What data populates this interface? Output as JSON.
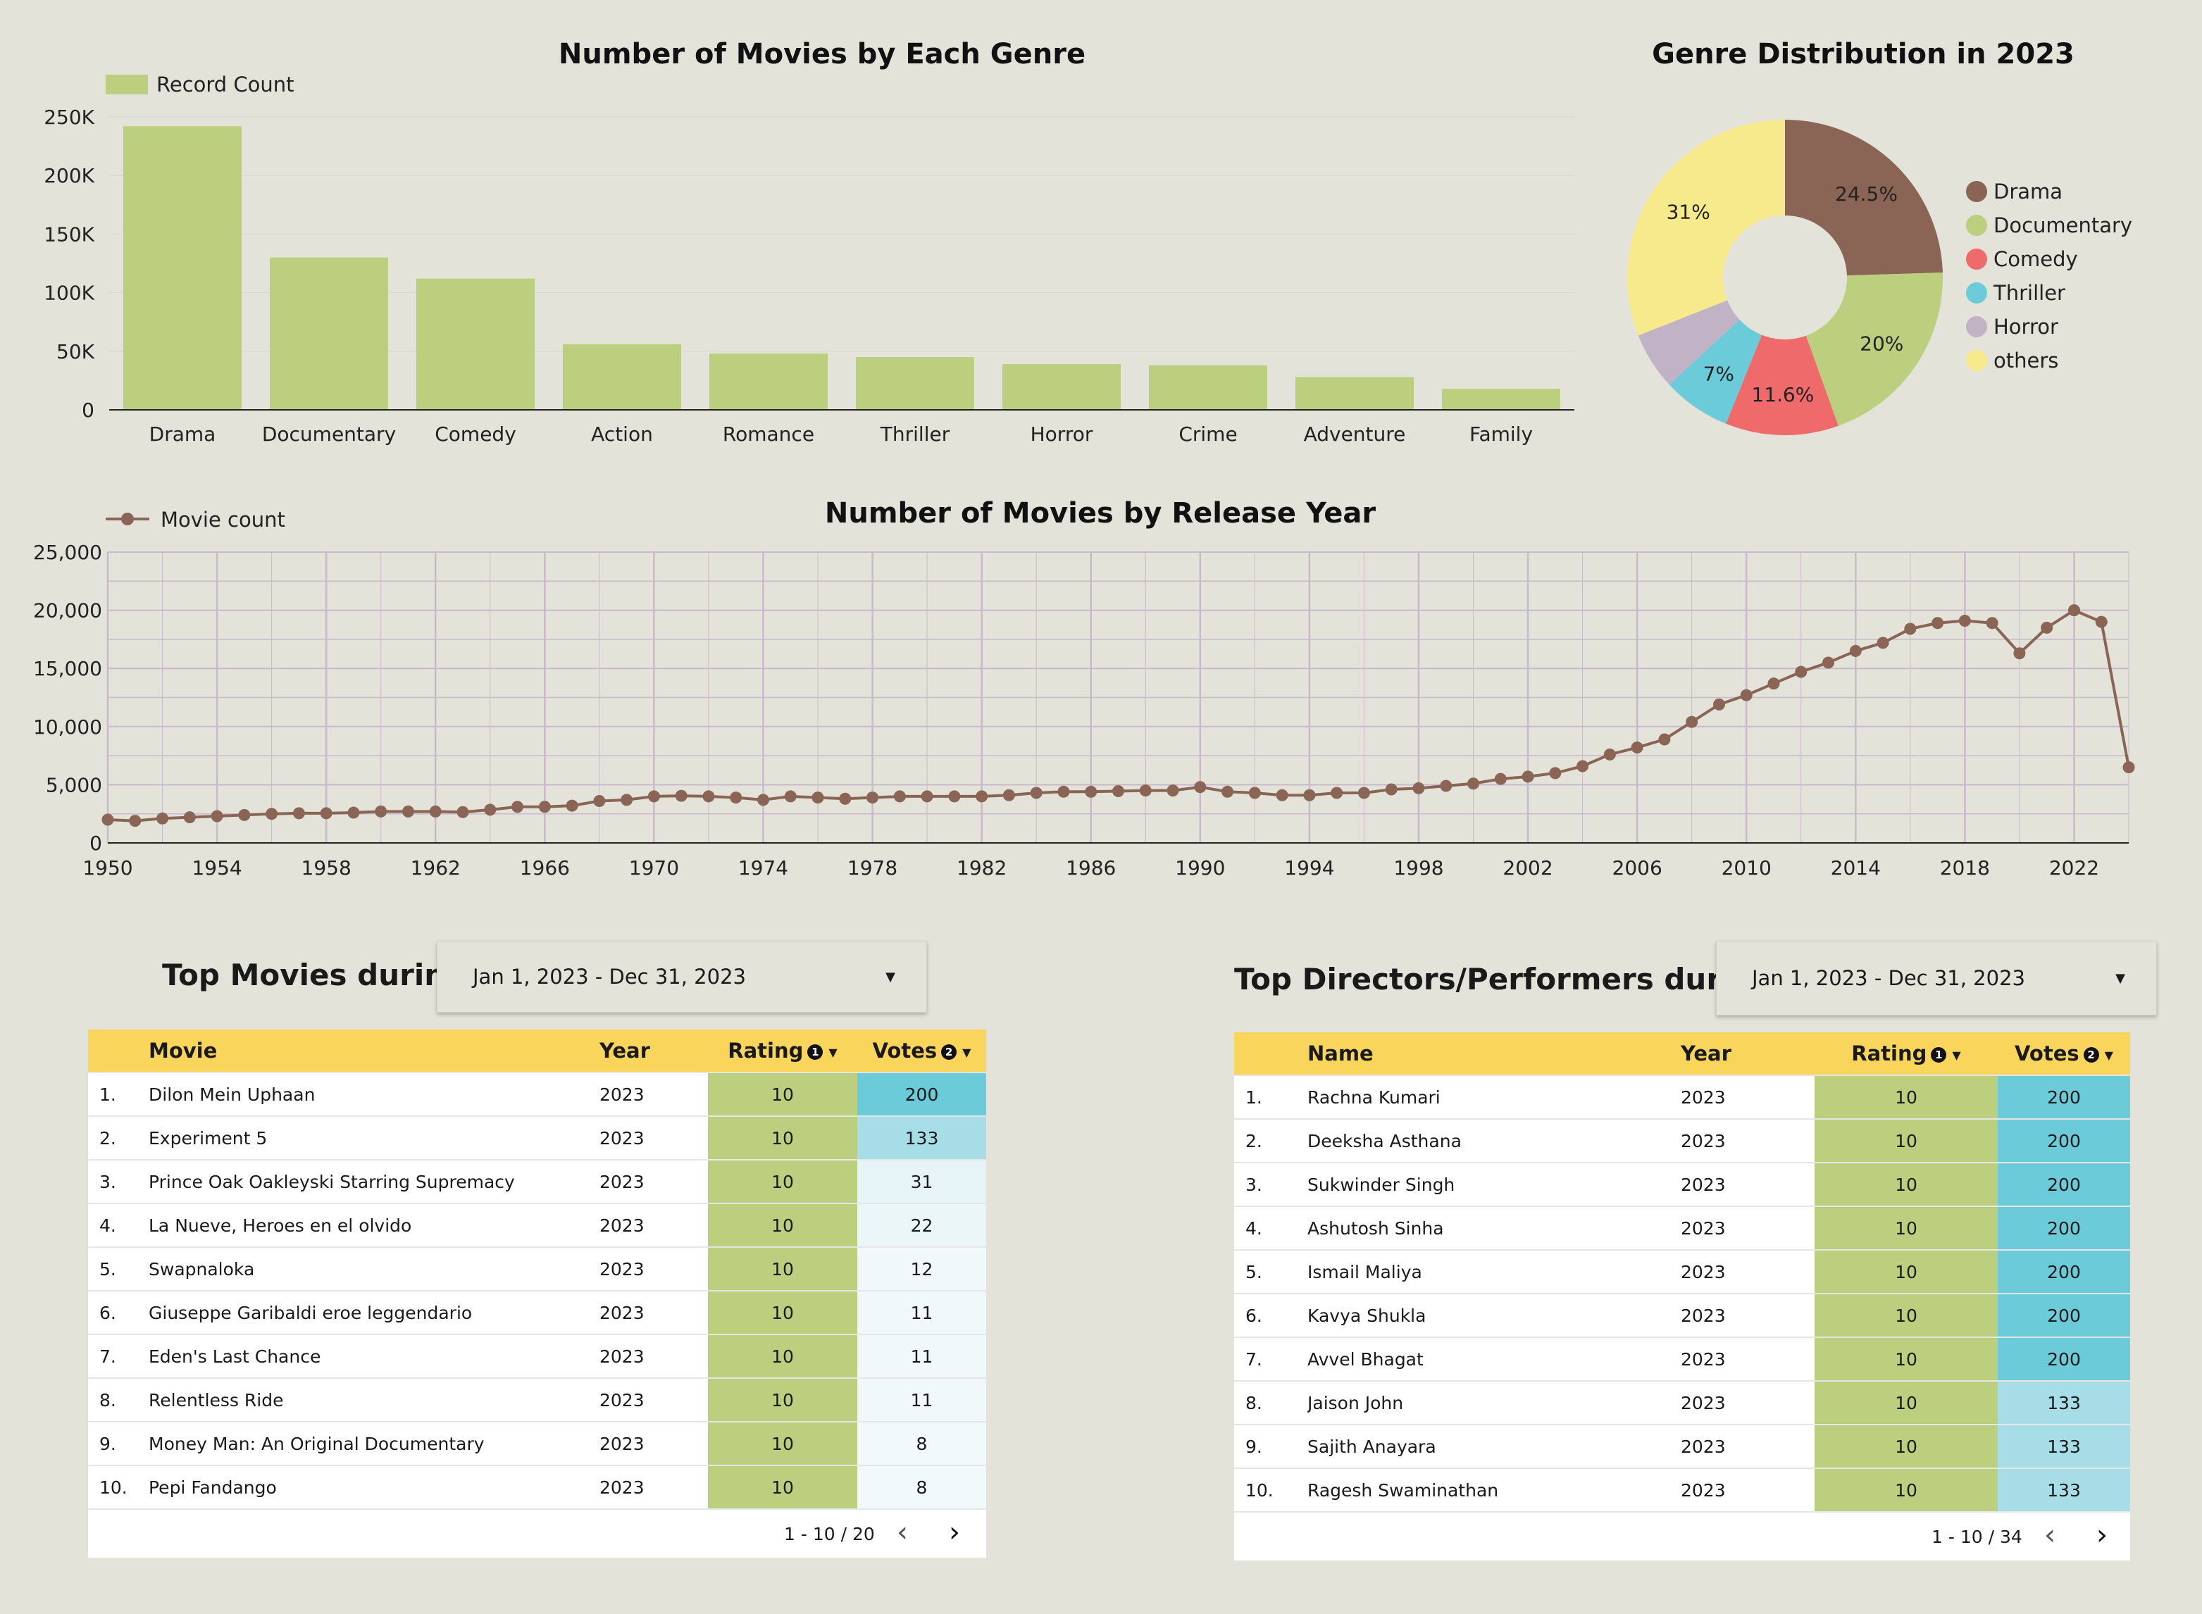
{
  "charts": {
    "genre_bar": {
      "type": "bar",
      "title": "Number of Movies by Each Genre",
      "legend": "Record Count",
      "categories": [
        "Drama",
        "Documentary",
        "Comedy",
        "Action",
        "Romance",
        "Thriller",
        "Horror",
        "Crime",
        "Adventure",
        "Family"
      ],
      "values": [
        242000,
        130000,
        112000,
        56000,
        48000,
        45000,
        39000,
        38000,
        28000,
        18000
      ],
      "ylim": [
        0,
        250000
      ],
      "yticks": [
        0,
        50000,
        100000,
        150000,
        200000,
        250000
      ],
      "ytick_labels": [
        "0",
        "50K",
        "100K",
        "150K",
        "200K",
        "250K"
      ],
      "color": "#bccf7f"
    },
    "genre_pie": {
      "type": "pie",
      "title": "Genre Distribution in 2023",
      "slices": [
        {
          "label": "Drama",
          "value": 24.5,
          "text": "24.5%",
          "color": "#8a6454"
        },
        {
          "label": "Documentary",
          "value": 20,
          "text": "20%",
          "color": "#bccf7f"
        },
        {
          "label": "Comedy",
          "value": 11.6,
          "text": "11.6%",
          "color": "#ef6b6b"
        },
        {
          "label": "Thriller",
          "value": 7,
          "text": "7%",
          "color": "#6ccbd8"
        },
        {
          "label": "Horror",
          "value": 5.9,
          "text": "",
          "color": "#c2b2c6"
        },
        {
          "label": "others",
          "value": 31,
          "text": "31%",
          "color": "#f6ea8c"
        }
      ]
    },
    "year_line": {
      "type": "line",
      "title": "Number of Movies by Release Year",
      "legend": "Movie count",
      "x": [
        1950,
        1951,
        1952,
        1953,
        1954,
        1955,
        1956,
        1957,
        1958,
        1959,
        1960,
        1961,
        1962,
        1963,
        1964,
        1965,
        1966,
        1967,
        1968,
        1969,
        1970,
        1971,
        1972,
        1973,
        1974,
        1975,
        1976,
        1977,
        1978,
        1979,
        1980,
        1981,
        1982,
        1983,
        1984,
        1985,
        1986,
        1987,
        1988,
        1989,
        1990,
        1991,
        1992,
        1993,
        1994,
        1995,
        1996,
        1997,
        1998,
        1999,
        2000,
        2001,
        2002,
        2003,
        2004,
        2005,
        2006,
        2007,
        2008,
        2009,
        2010,
        2011,
        2012,
        2013,
        2014,
        2015,
        2016,
        2017,
        2018,
        2019,
        2020,
        2021,
        2022,
        2023,
        2024
      ],
      "y": [
        2000,
        1900,
        2100,
        2200,
        2300,
        2400,
        2500,
        2550,
        2550,
        2600,
        2700,
        2700,
        2700,
        2650,
        2850,
        3100,
        3100,
        3200,
        3600,
        3700,
        4000,
        4050,
        4000,
        3900,
        3700,
        4000,
        3900,
        3800,
        3900,
        4000,
        4000,
        4000,
        4000,
        4100,
        4300,
        4400,
        4400,
        4450,
        4500,
        4500,
        4800,
        4400,
        4300,
        4100,
        4100,
        4300,
        4300,
        4600,
        4700,
        4900,
        5100,
        5500,
        5700,
        6000,
        6600,
        7600,
        8200,
        8900,
        10400,
        11900,
        12700,
        13700,
        14700,
        15500,
        16500,
        17200,
        18400,
        18900,
        19100,
        18900,
        16300,
        18500,
        20000,
        19000,
        6500
      ],
      "ylim": [
        0,
        25000
      ],
      "yticks": [
        0,
        5000,
        10000,
        15000,
        20000,
        25000
      ],
      "ytick_labels": [
        "0",
        "5,000",
        "10,000",
        "15,000",
        "20,000",
        "25,000"
      ],
      "xticks": [
        1950,
        1954,
        1958,
        1962,
        1966,
        1970,
        1974,
        1978,
        1982,
        1986,
        1990,
        1994,
        1998,
        2002,
        2006,
        2010,
        2014,
        2018,
        2022
      ],
      "xlim": [
        1950,
        2024
      ],
      "grid": true,
      "color": "#8a6454"
    }
  },
  "top_movies": {
    "heading": "Top Movies during",
    "date_range": "Jan 1, 2023 - Dec 31, 2023",
    "columns": {
      "name": "Movie",
      "year": "Year",
      "rating": "Rating",
      "votes": "Votes",
      "rating_note": "1",
      "votes_note": "2"
    },
    "rows": [
      {
        "idx": "1.",
        "name": "Dilon Mein Uphaan",
        "year": "2023",
        "rating": "10",
        "votes": "200",
        "votes_color": "#6ccbd8"
      },
      {
        "idx": "2.",
        "name": "Experiment 5",
        "year": "2023",
        "rating": "10",
        "votes": "133",
        "votes_color": "#a6dde6"
      },
      {
        "idx": "3.",
        "name": "Prince Oak Oakleyski Starring Supremacy",
        "year": "2023",
        "rating": "10",
        "votes": "31",
        "votes_color": "#e6f4f7"
      },
      {
        "idx": "4.",
        "name": "La Nueve, Heroes en el olvido",
        "year": "2023",
        "rating": "10",
        "votes": "22",
        "votes_color": "#ebf6f8"
      },
      {
        "idx": "5.",
        "name": "Swapnaloka",
        "year": "2023",
        "rating": "10",
        "votes": "12",
        "votes_color": "#f0f8fa"
      },
      {
        "idx": "6.",
        "name": "Giuseppe Garibaldi eroe leggendario",
        "year": "2023",
        "rating": "10",
        "votes": "11",
        "votes_color": "#f0f8fa"
      },
      {
        "idx": "7.",
        "name": "Eden's Last Chance",
        "year": "2023",
        "rating": "10",
        "votes": "11",
        "votes_color": "#f0f8fa"
      },
      {
        "idx": "8.",
        "name": "Relentless Ride",
        "year": "2023",
        "rating": "10",
        "votes": "11",
        "votes_color": "#f0f8fa"
      },
      {
        "idx": "9.",
        "name": "Money Man: An Original Documentary",
        "year": "2023",
        "rating": "10",
        "votes": "8",
        "votes_color": "#f2f9fa"
      },
      {
        "idx": "10.",
        "name": "Pepi Fandango",
        "year": "2023",
        "rating": "10",
        "votes": "8",
        "votes_color": "#f2f9fa"
      }
    ],
    "pagination": "1 - 10 / 20"
  },
  "top_people": {
    "heading": "Top Directors/Performers during",
    "date_range": "Jan 1, 2023 - Dec 31, 2023",
    "columns": {
      "name": "Name",
      "year": "Year",
      "rating": "Rating",
      "votes": "Votes",
      "rating_note": "1",
      "votes_note": "2"
    },
    "rows": [
      {
        "idx": "1.",
        "name": "Rachna Kumari",
        "year": "2023",
        "rating": "10",
        "votes": "200",
        "votes_color": "#6ccbd8"
      },
      {
        "idx": "2.",
        "name": "Deeksha Asthana",
        "year": "2023",
        "rating": "10",
        "votes": "200",
        "votes_color": "#6ccbd8"
      },
      {
        "idx": "3.",
        "name": "Sukwinder Singh",
        "year": "2023",
        "rating": "10",
        "votes": "200",
        "votes_color": "#6ccbd8"
      },
      {
        "idx": "4.",
        "name": "Ashutosh Sinha",
        "year": "2023",
        "rating": "10",
        "votes": "200",
        "votes_color": "#6ccbd8"
      },
      {
        "idx": "5.",
        "name": "Ismail Maliya",
        "year": "2023",
        "rating": "10",
        "votes": "200",
        "votes_color": "#6ccbd8"
      },
      {
        "idx": "6.",
        "name": "Kavya Shukla",
        "year": "2023",
        "rating": "10",
        "votes": "200",
        "votes_color": "#6ccbd8"
      },
      {
        "idx": "7.",
        "name": "Avvel Bhagat",
        "year": "2023",
        "rating": "10",
        "votes": "200",
        "votes_color": "#6ccbd8"
      },
      {
        "idx": "8.",
        "name": "Jaison John",
        "year": "2023",
        "rating": "10",
        "votes": "133",
        "votes_color": "#a6dde6"
      },
      {
        "idx": "9.",
        "name": "Sajith Anayara",
        "year": "2023",
        "rating": "10",
        "votes": "133",
        "votes_color": "#a6dde6"
      },
      {
        "idx": "10.",
        "name": "Ragesh Swaminathan",
        "year": "2023",
        "rating": "10",
        "votes": "133",
        "votes_color": "#a6dde6"
      }
    ],
    "pagination": "1 - 10 / 34"
  },
  "icons": {
    "dropdown": "caret-down-icon",
    "prev": "chevron-left-icon",
    "next": "chevron-right-icon",
    "sort": "caret-down-icon"
  }
}
